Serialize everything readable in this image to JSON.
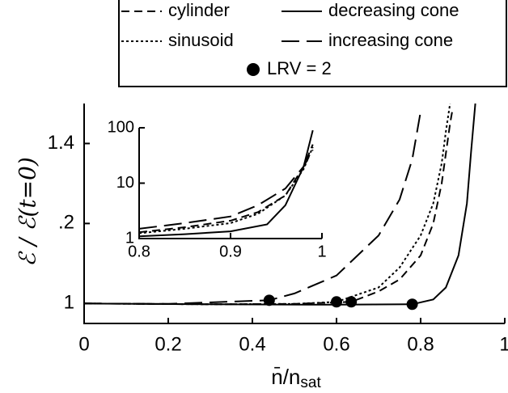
{
  "chart_data": [
    {
      "type": "line",
      "xlabel": "n̄/n",
      "xlabel_sub": "sat",
      "ylabel": "ℰ / ℰ(t=0)",
      "xlim": [
        0,
        1
      ],
      "ylim": [
        0.95,
        1.5
      ],
      "xticks": [
        0,
        0.2,
        0.4,
        0.6,
        0.8,
        1
      ],
      "yticks": [
        1,
        {
          "value": 1.2,
          "label": ".2"
        },
        1.4
      ],
      "legend": "top-right",
      "series": [
        {
          "name": "cylinder",
          "color": "#000000",
          "dash": "dashed",
          "x": [
            0,
            0.3,
            0.5,
            0.635,
            0.7,
            0.75,
            0.8,
            0.83,
            0.85,
            0.87,
            0.875
          ],
          "values": [
            1.0,
            0.998,
            0.999,
            1.004,
            1.03,
            1.06,
            1.12,
            1.2,
            1.3,
            1.45,
            1.48
          ]
        },
        {
          "name": "decreasing cone",
          "color": "#000000",
          "dash": "solid",
          "x": [
            0,
            0.3,
            0.6,
            0.78,
            0.83,
            0.86,
            0.89,
            0.91,
            0.92,
            0.93
          ],
          "values": [
            1.0,
            0.998,
            0.997,
            0.998,
            1.01,
            1.04,
            1.12,
            1.25,
            1.38,
            1.5
          ]
        },
        {
          "name": "sinusoid",
          "color": "#000000",
          "dash": "dotted",
          "x": [
            0,
            0.3,
            0.5,
            0.6,
            0.7,
            0.75,
            0.8,
            0.83,
            0.85,
            0.86,
            0.87
          ],
          "values": [
            1.0,
            0.998,
            0.999,
            1.004,
            1.04,
            1.09,
            1.17,
            1.25,
            1.35,
            1.43,
            1.5
          ]
        },
        {
          "name": "increasing cone",
          "color": "#000000",
          "dash": "longdash",
          "x": [
            0,
            0.2,
            0.44,
            0.5,
            0.6,
            0.7,
            0.75,
            0.78,
            0.8
          ],
          "values": [
            1.0,
            0.999,
            1.008,
            1.025,
            1.07,
            1.17,
            1.26,
            1.36,
            1.48
          ]
        }
      ],
      "markers": {
        "name": "LRV = 2",
        "color": "#000000",
        "x": [
          0.44,
          0.6,
          0.635,
          0.78
        ],
        "values": [
          1.008,
          1.004,
          1.004,
          0.998
        ]
      }
    },
    {
      "type": "line",
      "ylog": true,
      "xlim": [
        0.8,
        1
      ],
      "ylim": [
        1,
        100
      ],
      "xticks": [
        0.8,
        0.9,
        1
      ],
      "yticks": [
        1,
        10,
        100
      ],
      "series": [
        {
          "color": "#000000",
          "dash": "dashed",
          "x": [
            0.8,
            0.85,
            0.9,
            0.93,
            0.96,
            0.98,
            0.99
          ],
          "values": [
            1.3,
            1.6,
            2.1,
            3,
            6,
            20,
            50
          ]
        },
        {
          "color": "#000000",
          "dash": "solid",
          "x": [
            0.8,
            0.85,
            0.9,
            0.94,
            0.96,
            0.98,
            0.99
          ],
          "values": [
            1.1,
            1.2,
            1.35,
            1.8,
            4,
            20,
            90
          ]
        },
        {
          "color": "#000000",
          "dash": "dotted",
          "x": [
            0.8,
            0.85,
            0.9,
            0.93,
            0.96,
            0.98,
            0.99
          ],
          "values": [
            1.25,
            1.5,
            1.9,
            2.8,
            6,
            18,
            45
          ]
        },
        {
          "color": "#000000",
          "dash": "longdash",
          "x": [
            0.8,
            0.85,
            0.9,
            0.93,
            0.96,
            0.98,
            0.99
          ],
          "values": [
            1.5,
            1.9,
            2.5,
            4,
            8,
            20,
            40
          ]
        }
      ]
    }
  ]
}
